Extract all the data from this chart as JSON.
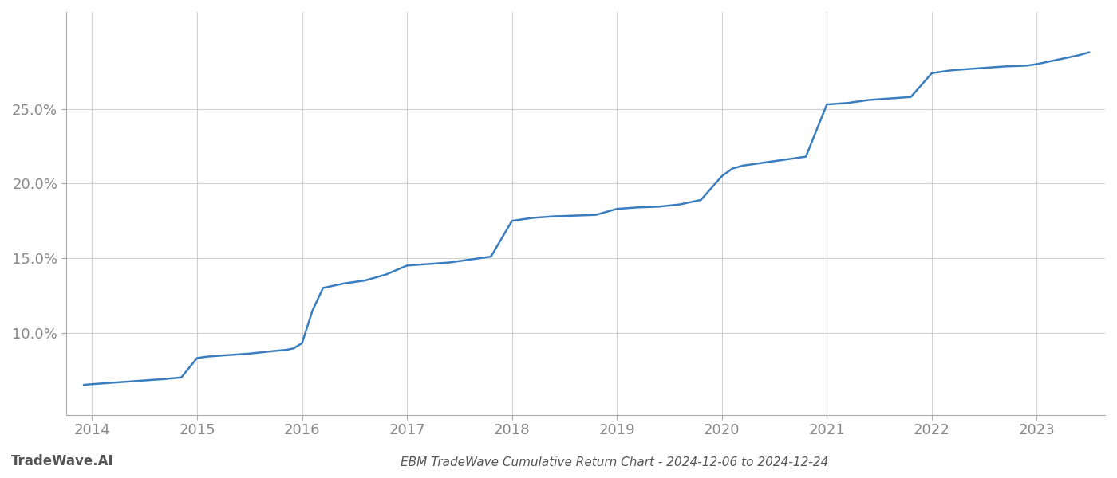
{
  "title": "EBM TradeWave Cumulative Return Chart - 2024-12-06 to 2024-12-24",
  "watermark": "TradeWave.AI",
  "line_color": "#3a7ebf",
  "line_width": 1.8,
  "background_color": "#ffffff",
  "grid_color": "#cccccc",
  "x_values": [
    2013.92,
    2014.0,
    2014.1,
    2014.2,
    2014.3,
    2014.5,
    2014.7,
    2014.85,
    2015.0,
    2015.05,
    2015.1,
    2015.3,
    2015.5,
    2015.7,
    2015.85,
    2015.92,
    2016.0,
    2016.1,
    2016.2,
    2016.4,
    2016.6,
    2016.8,
    2017.0,
    2017.2,
    2017.4,
    2017.6,
    2017.8,
    2018.0,
    2018.1,
    2018.2,
    2018.4,
    2018.6,
    2018.8,
    2019.0,
    2019.2,
    2019.4,
    2019.6,
    2019.8,
    2020.0,
    2020.1,
    2020.2,
    2020.4,
    2020.6,
    2020.8,
    2021.0,
    2021.2,
    2021.4,
    2021.6,
    2021.8,
    2022.0,
    2022.1,
    2022.2,
    2022.3,
    2022.5,
    2022.7,
    2022.9,
    2023.0,
    2023.2,
    2023.4,
    2023.5
  ],
  "y_values": [
    6.5,
    6.55,
    6.6,
    6.65,
    6.7,
    6.8,
    6.9,
    7.0,
    8.3,
    8.35,
    8.4,
    8.5,
    8.6,
    8.75,
    8.85,
    8.95,
    9.3,
    11.5,
    13.0,
    13.3,
    13.5,
    13.9,
    14.5,
    14.6,
    14.7,
    14.9,
    15.1,
    17.5,
    17.6,
    17.7,
    17.8,
    17.85,
    17.9,
    18.3,
    18.4,
    18.45,
    18.6,
    18.9,
    20.5,
    21.0,
    21.2,
    21.4,
    21.6,
    21.8,
    25.3,
    25.4,
    25.6,
    25.7,
    25.8,
    27.4,
    27.5,
    27.6,
    27.65,
    27.75,
    27.85,
    27.9,
    28.0,
    28.3,
    28.6,
    28.8
  ],
  "xlim": [
    2013.75,
    2023.65
  ],
  "ylim": [
    4.5,
    31.5
  ],
  "yticks": [
    10.0,
    15.0,
    20.0,
    25.0
  ],
  "xticks": [
    2014,
    2015,
    2016,
    2017,
    2018,
    2019,
    2020,
    2021,
    2022,
    2023
  ],
  "tick_label_color": "#888888",
  "tick_label_size": 13,
  "title_fontsize": 11,
  "title_color": "#555555",
  "watermark_fontsize": 12,
  "watermark_color": "#555555"
}
